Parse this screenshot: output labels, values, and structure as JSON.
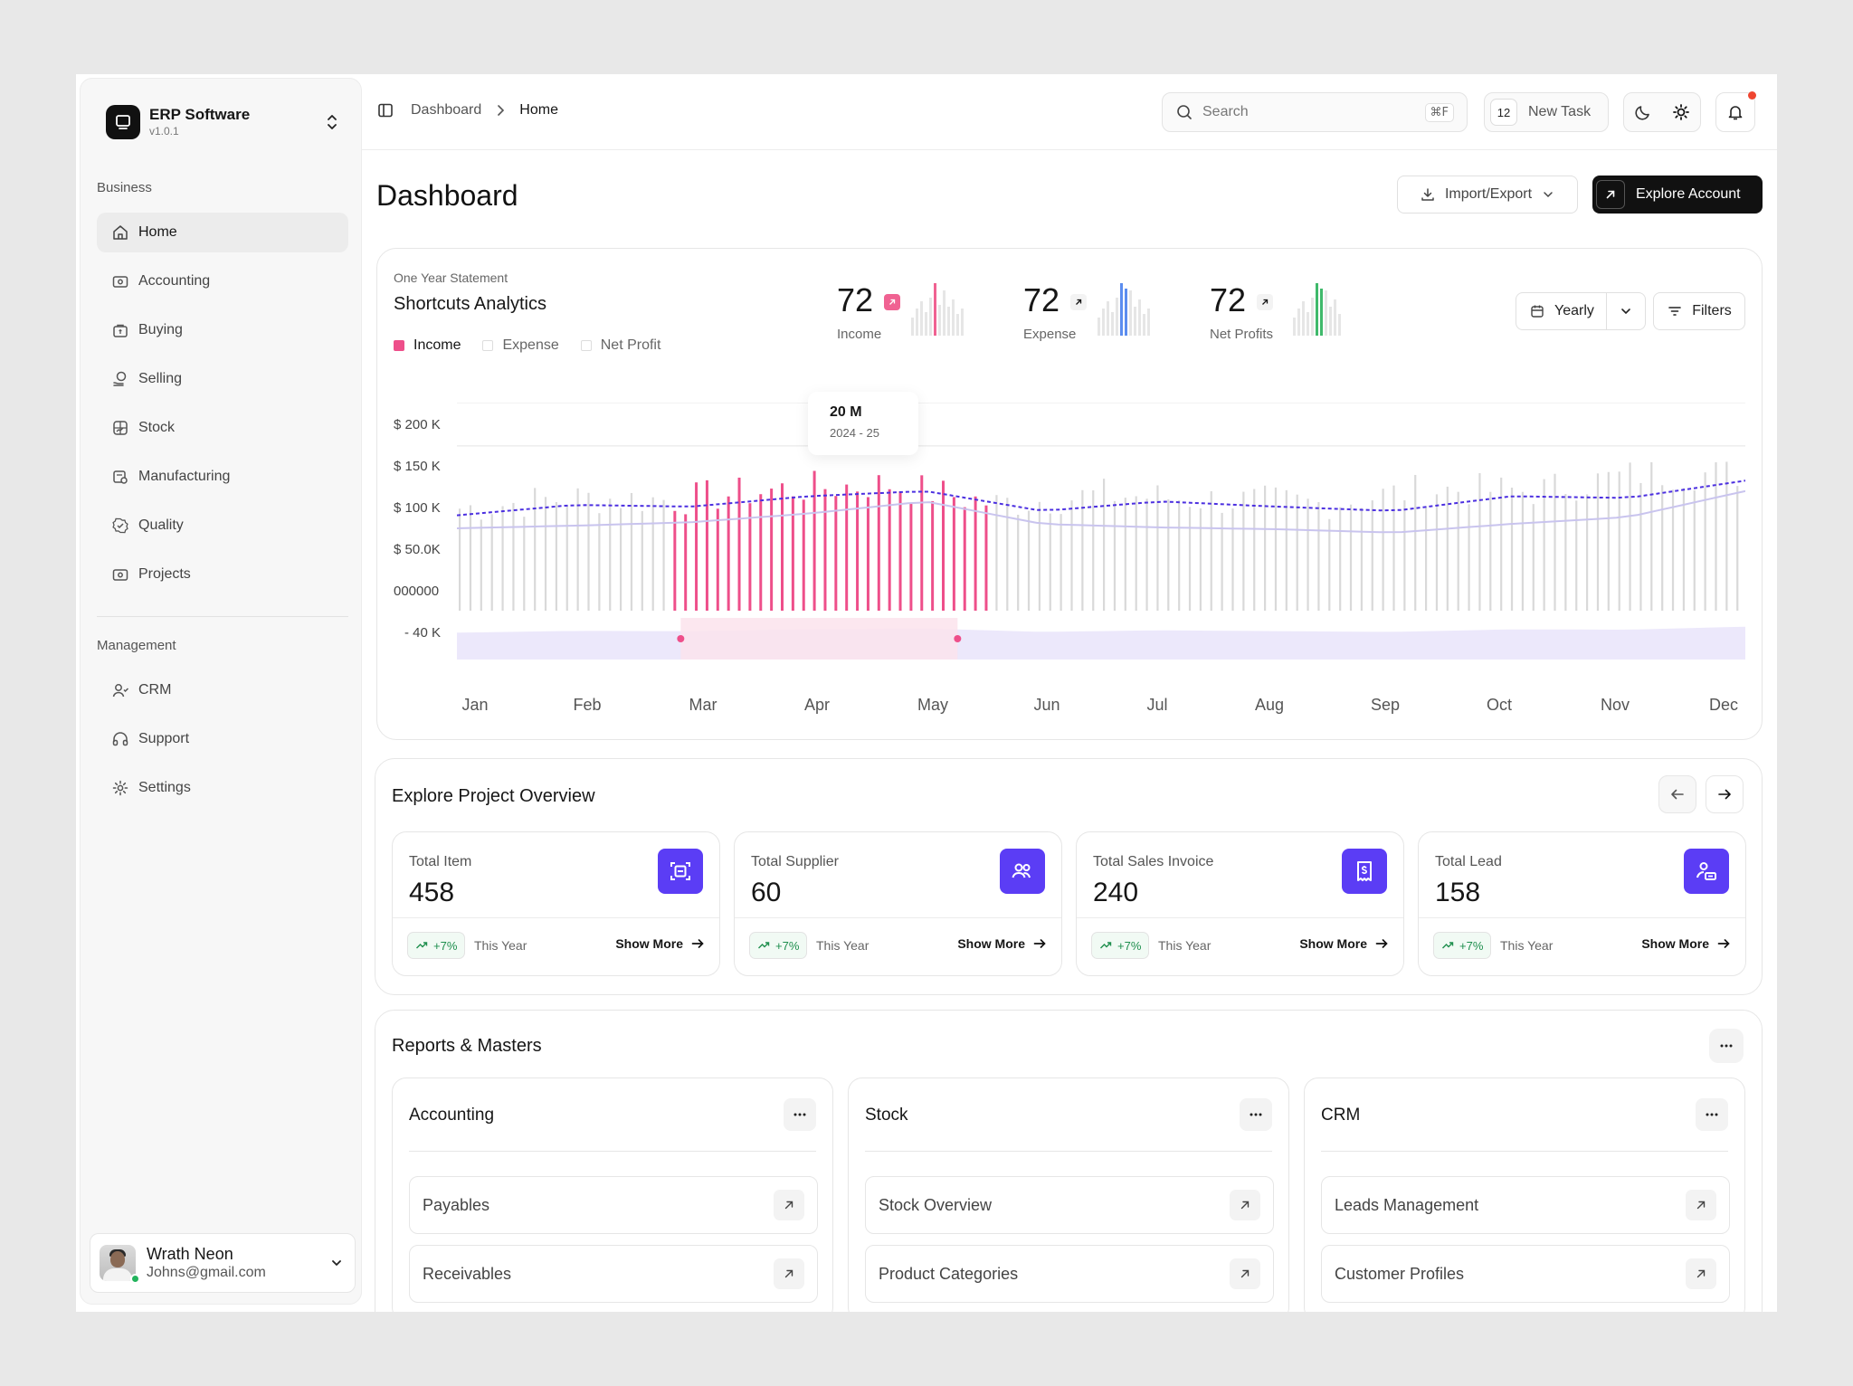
{
  "app": {
    "name": "ERP Software",
    "version": "v1.0.1"
  },
  "sidebar": {
    "business_title": "Business",
    "business_items": [
      {
        "label": "Home",
        "icon": "home-icon",
        "active": true
      },
      {
        "label": "Accounting",
        "icon": "wallet-icon"
      },
      {
        "label": "Buying",
        "icon": "bag-icon"
      },
      {
        "label": "Selling",
        "icon": "coin-hand-icon"
      },
      {
        "label": "Stock",
        "icon": "stock-icon"
      },
      {
        "label": "Manufacturing",
        "icon": "factory-icon"
      },
      {
        "label": "Quality",
        "icon": "badge-check-icon"
      },
      {
        "label": "Projects",
        "icon": "folder-icon"
      }
    ],
    "management_title": "Management",
    "management_items": [
      {
        "label": "CRM",
        "icon": "users-icon"
      },
      {
        "label": "Support",
        "icon": "headphones-icon"
      },
      {
        "label": "Settings",
        "icon": "gear-icon"
      }
    ],
    "user": {
      "name": "Wrath Neon",
      "email": "Johns@gmail.com"
    }
  },
  "topbar": {
    "breadcrumb": [
      "Dashboard",
      "Home"
    ],
    "search_placeholder": "Search",
    "search_shortcut": "⌘F",
    "task_count": "12",
    "new_task_label": "New Task"
  },
  "page": {
    "title": "Dashboard",
    "import_export_label": "Import/Export",
    "explore_label": "Explore Account"
  },
  "analytics": {
    "subtitle": "One Year Statement",
    "title": "Shortcuts Analytics",
    "legend": [
      "Income",
      "Expense",
      "Net Profit"
    ],
    "stats": [
      {
        "value": "72",
        "label": "Income",
        "color": "#f06292"
      },
      {
        "value": "72",
        "label": "Expense",
        "color": "#5b8def"
      },
      {
        "value": "72",
        "label": "Net Profits",
        "color": "#3fb96b"
      }
    ],
    "period_label": "Yearly",
    "filters_label": "Filters",
    "tooltip": {
      "value": "20 M",
      "date": "2024 - 25"
    }
  },
  "chart_data": {
    "type": "bar",
    "categories": [
      "Jan",
      "Feb",
      "Mar",
      "Apr",
      "May",
      "Jun",
      "Jul",
      "Aug",
      "Sep",
      "Oct",
      "Nov",
      "Dec"
    ],
    "y_ticks": [
      "$ 200 K",
      "$ 150 K",
      "$ 100 K",
      "$ 50.0K",
      "000000",
      "- 40 K"
    ],
    "ylim": [
      -40,
      200
    ],
    "highlight_range": [
      "Mar",
      "May"
    ],
    "colors": {
      "bars": "#d9d9d9",
      "highlight": "#ee4f8a",
      "line": "#4b2fe0",
      "line2": "#c9c4ee"
    },
    "series": [
      {
        "name": "Income",
        "values": [
          70,
          82,
          80,
          92,
          98,
          75,
          86,
          80,
          75,
          92,
          90,
          110
        ]
      },
      {
        "name": "Net Profit",
        "values": [
          55,
          58,
          62,
          72,
          86,
          60,
          56,
          54,
          50,
          60,
          68,
          98
        ]
      }
    ]
  },
  "overview": {
    "title": "Explore Project Overview",
    "cards": [
      {
        "title": "Total Item",
        "value": "458",
        "change": "+7%",
        "period": "This Year",
        "more": "Show More",
        "icon": "scan-box-icon"
      },
      {
        "title": "Total Supplier",
        "value": "60",
        "change": "+7%",
        "period": "This Year",
        "more": "Show More",
        "icon": "users-group-icon"
      },
      {
        "title": "Total Sales Invoice",
        "value": "240",
        "change": "+7%",
        "period": "This Year",
        "more": "Show More",
        "icon": "invoice-icon"
      },
      {
        "title": "Total Lead",
        "value": "158",
        "change": "+7%",
        "period": "This Year",
        "more": "Show More",
        "icon": "lead-icon"
      }
    ]
  },
  "reports": {
    "title": "Reports & Masters",
    "cards": [
      {
        "title": "Accounting",
        "items": [
          "Payables",
          "Receivables"
        ]
      },
      {
        "title": "Stock",
        "items": [
          "Stock Overview",
          "Product Categories"
        ]
      },
      {
        "title": "CRM",
        "items": [
          "Leads Management",
          "Customer Profiles"
        ]
      }
    ]
  }
}
